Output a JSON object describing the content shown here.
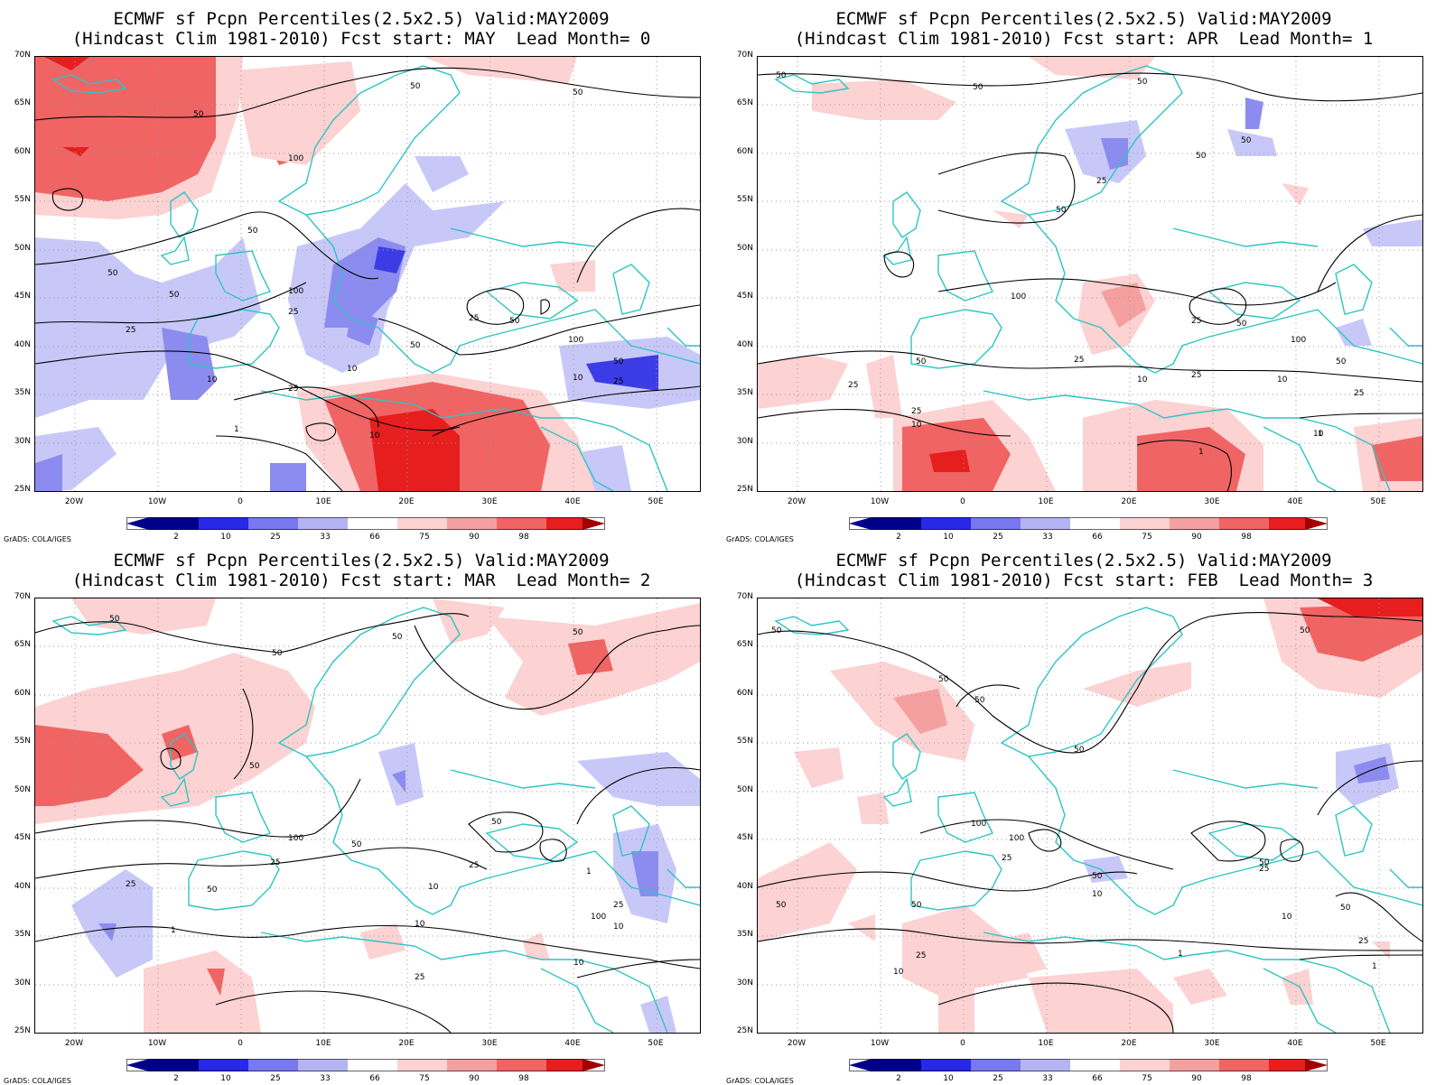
{
  "panels": [
    {
      "title_line1": "ECMWF sf Pcpn Percentiles(2.5x2.5) Valid:MAY2009",
      "title_line2": "(Hindcast Clim 1981-2010) Fcst start: MAY  Lead Month= 0"
    },
    {
      "title_line1": "ECMWF sf Pcpn Percentiles(2.5x2.5) Valid:MAY2009",
      "title_line2": "(Hindcast Clim 1981-2010) Fcst start: APR  Lead Month= 1"
    },
    {
      "title_line1": "ECMWF sf Pcpn Percentiles(2.5x2.5) Valid:MAY2009",
      "title_line2": "(Hindcast Clim 1981-2010) Fcst start: MAR  Lead Month= 2"
    },
    {
      "title_line1": "ECMWF sf Pcpn Percentiles(2.5x2.5) Valid:MAY2009",
      "title_line2": "(Hindcast Clim 1981-2010) Fcst start: FEB  Lead Month= 3"
    }
  ],
  "lat_labels": [
    "70N",
    "65N",
    "60N",
    "55N",
    "50N",
    "45N",
    "40N",
    "35N",
    "30N",
    "25N"
  ],
  "lon_labels": [
    "20W",
    "10W",
    "0",
    "10E",
    "20E",
    "30E",
    "40E",
    "50E"
  ],
  "colorbar": {
    "labels": [
      "2",
      "10",
      "25",
      "33",
      "66",
      "75",
      "90",
      "98"
    ],
    "colors": [
      "#00008b",
      "#2828e6",
      "#7878f0",
      "#b4b4f5",
      "#d7d7f8",
      "#ffffff",
      "#fcd2d2",
      "#f5a0a0",
      "#f06464",
      "#e61e1e",
      "#a00000"
    ]
  },
  "credit": "GrADS: COLA/IGES",
  "anomaly_colors": {
    "red_dark": "#e61e1e",
    "red_mid": "#f06464",
    "red_light": "#fcd2d2",
    "red_med": "#f5a0a0",
    "blue_dark": "#3c3ce6",
    "blue_mid": "#8c8cf0",
    "blue_light": "#c8c8f8"
  },
  "coast_color": "#2ec4c4",
  "contour_color": "#000000",
  "contour_labels": [
    [
      "50",
      "50",
      "50",
      "100",
      "50",
      "50",
      "100",
      "50",
      "25",
      "25",
      "10",
      "10",
      "25",
      "50",
      "50",
      "25",
      "10",
      "25",
      "50",
      "100",
      "10",
      "1"
    ],
    [
      "50",
      "50",
      "50",
      "50",
      "25",
      "50",
      "100",
      "50",
      "25",
      "50",
      "25",
      "10",
      "25",
      "10",
      "1",
      "25",
      "50",
      "100",
      "10",
      "25",
      "10",
      "25",
      "50",
      "1"
    ],
    [
      "50",
      "50",
      "50",
      "50",
      "50",
      "100",
      "25",
      "50",
      "25",
      "50",
      "25",
      "10",
      "10",
      "1",
      "100",
      "50",
      "25",
      "10",
      "25",
      "10",
      "1"
    ],
    [
      "50",
      "50",
      "50",
      "50",
      "50",
      "100",
      "100",
      "25",
      "50",
      "50",
      "50",
      "25",
      "10",
      "25",
      "10",
      "1",
      "50",
      "50",
      "25",
      "10",
      "1"
    ]
  ]
}
